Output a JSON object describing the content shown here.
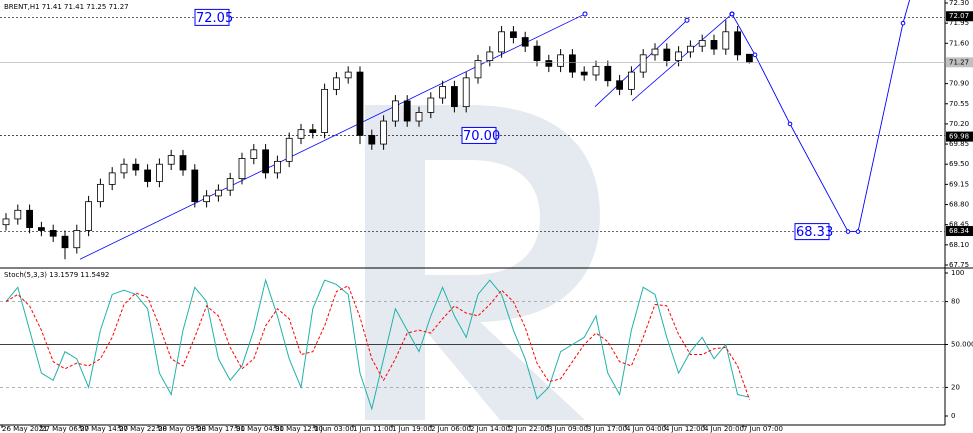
{
  "chart_data": {
    "type": "candlestick",
    "title": "BRENT,H1 71.41 71.41 71.25 71.27",
    "x_labels": [
      "26 May 2021",
      "27 May 06:00",
      "27 May 14:00",
      "27 May 22:00",
      "28 May 09:00",
      "28 May 17:00",
      "31 May 04:00",
      "31 May 12:00",
      "1 Jun 03:00",
      "1 Jun 11:00",
      "1 Jun 19:00",
      "2 Jun 06:00",
      "2 Jun 14:00",
      "2 Jun 22:00",
      "3 Jun 09:00",
      "3 Jun 17:00",
      "4 Jun 04:00",
      "4 Jun 12:00",
      "4 Jun 20:00",
      "7 Jun 07:00"
    ],
    "open": [
      68.45,
      68.55,
      68.7,
      68.4,
      68.35,
      68.25,
      68.05,
      68.35,
      68.85,
      69.15,
      69.35,
      69.5,
      69.4,
      69.2,
      69.5,
      69.65,
      69.4,
      68.85,
      68.95,
      69.05,
      69.25,
      69.6,
      69.75,
      69.35,
      69.55,
      69.95,
      70.1,
      70.05,
      70.8,
      71.0,
      71.1,
      70.0,
      69.85,
      70.25,
      70.6,
      70.25,
      70.4,
      70.65,
      70.85,
      70.5,
      71.0,
      71.3,
      71.45,
      71.8,
      71.7,
      71.55,
      71.3,
      71.2,
      71.4,
      71.1,
      71.05,
      71.2,
      70.95,
      70.8,
      71.1,
      71.4,
      71.5,
      71.3,
      71.45,
      71.55,
      71.65,
      71.5,
      71.8,
      71.41
    ],
    "high": [
      68.65,
      68.8,
      68.8,
      68.5,
      68.45,
      68.35,
      68.45,
      68.95,
      69.25,
      69.45,
      69.6,
      69.6,
      69.5,
      69.6,
      69.75,
      69.75,
      69.5,
      69.05,
      69.15,
      69.35,
      69.7,
      69.85,
      69.85,
      69.65,
      70.05,
      70.2,
      70.2,
      70.9,
      71.1,
      71.2,
      71.2,
      70.1,
      70.35,
      70.7,
      70.7,
      70.5,
      70.75,
      70.95,
      70.95,
      71.1,
      71.4,
      71.55,
      71.9,
      71.9,
      71.8,
      71.65,
      71.4,
      71.5,
      71.5,
      71.2,
      71.3,
      71.3,
      71.05,
      71.2,
      71.5,
      71.6,
      71.6,
      71.55,
      71.65,
      71.75,
      71.75,
      72.0,
      71.9,
      71.41
    ],
    "low": [
      68.35,
      68.45,
      68.3,
      68.25,
      68.15,
      67.85,
      67.95,
      68.25,
      68.75,
      69.05,
      69.25,
      69.3,
      69.1,
      69.1,
      69.4,
      69.3,
      68.75,
      68.75,
      68.85,
      68.95,
      69.15,
      69.5,
      69.25,
      69.25,
      69.45,
      69.85,
      69.95,
      69.95,
      70.7,
      70.9,
      69.85,
      69.75,
      69.75,
      70.15,
      70.15,
      70.15,
      70.3,
      70.55,
      70.4,
      70.4,
      70.9,
      71.2,
      71.35,
      71.6,
      71.45,
      71.2,
      71.1,
      71.1,
      71.0,
      70.95,
      70.95,
      70.85,
      70.7,
      70.7,
      71.0,
      71.3,
      71.2,
      71.2,
      71.35,
      71.45,
      71.4,
      71.4,
      71.3,
      71.25
    ],
    "close": [
      68.55,
      68.7,
      68.4,
      68.35,
      68.25,
      68.05,
      68.35,
      68.85,
      69.15,
      69.35,
      69.5,
      69.4,
      69.2,
      69.5,
      69.65,
      69.4,
      68.85,
      68.95,
      69.05,
      69.25,
      69.6,
      69.75,
      69.35,
      69.55,
      69.95,
      70.1,
      70.05,
      70.8,
      71.0,
      71.1,
      70.0,
      69.85,
      70.25,
      70.6,
      70.25,
      70.4,
      70.65,
      70.85,
      70.5,
      71.0,
      71.3,
      71.45,
      71.8,
      71.7,
      71.55,
      71.3,
      71.2,
      71.4,
      71.1,
      71.05,
      71.2,
      70.95,
      70.8,
      71.1,
      71.4,
      71.5,
      71.3,
      71.45,
      71.55,
      71.65,
      71.5,
      71.8,
      71.4,
      71.27
    ],
    "ylim": [
      67.75,
      72.3
    ],
    "yticks": [
      {
        "value": 72.3,
        "label": "72.30"
      },
      71.95,
      {
        "value": 71.6,
        "label": "71.60"
      },
      {
        "value": 70.9,
        "label": "70.90"
      },
      70.55,
      {
        "value": 70.2,
        "label": "70.20"
      },
      69.85,
      {
        "value": 69.5,
        "label": "69.50"
      },
      69.15,
      {
        "value": 68.8,
        "label": "68.80"
      },
      68.45,
      {
        "value": 68.1,
        "label": "68.10"
      },
      67.75
    ],
    "levels": [
      72.05,
      {
        "value": 70,
        "label": "70.00"
      },
      68.33
    ],
    "price_labels": [
      72.07,
      69.98,
      68.34
    ],
    "last_price": 71.27,
    "trend_line": [
      67.85,
      72.11
    ],
    "wave_lines": [
      [
        70.5,
        72.0
      ],
      [
        70.6,
        72.11
      ]
    ],
    "forecast": [
      72.11,
      71.4,
      70.2,
      68.33,
      68.33,
      71.95,
      72.5
    ],
    "drawing_color": "#0000ff",
    "indicator": {
      "type": "stochastic",
      "title": "Stoch(5,3,3) 13.1579 11.5492",
      "ylim": [
        0,
        100
      ],
      "yticks": [
        0,
        20,
        {
          "value": 50,
          "label": "50.0000"
        },
        80,
        100
      ],
      "dashed_levels": [
        20,
        80
      ],
      "solid_levels": [
        50
      ],
      "main": {
        "color": "#20b2aa",
        "values": [
          80,
          90,
          60,
          30,
          25,
          45,
          40,
          20,
          60,
          85,
          88,
          85,
          75,
          30,
          15,
          60,
          90,
          80,
          40,
          25,
          35,
          60,
          95,
          70,
          40,
          20,
          75,
          95,
          92,
          85,
          30,
          5,
          40,
          75,
          60,
          45,
          70,
          90,
          70,
          55,
          85,
          95,
          85,
          60,
          40,
          12,
          20,
          45,
          50,
          55,
          70,
          30,
          15,
          60,
          90,
          85,
          55,
          30,
          45,
          55,
          40,
          50,
          15,
          13.1579
        ]
      },
      "signal": {
        "color": "#ff0000",
        "values": [
          80,
          85,
          77,
          60,
          38,
          33,
          37,
          35,
          40,
          55,
          78,
          86,
          83,
          63,
          40,
          35,
          55,
          77,
          70,
          48,
          33,
          40,
          63,
          75,
          68,
          43,
          45,
          63,
          87,
          91,
          69,
          40,
          25,
          40,
          58,
          60,
          58,
          68,
          77,
          72,
          70,
          78,
          88,
          80,
          62,
          37,
          24,
          26,
          38,
          50,
          58,
          52,
          38,
          35,
          55,
          78,
          77,
          57,
          43,
          43,
          47,
          48,
          35,
          11.5492
        ]
      }
    }
  }
}
